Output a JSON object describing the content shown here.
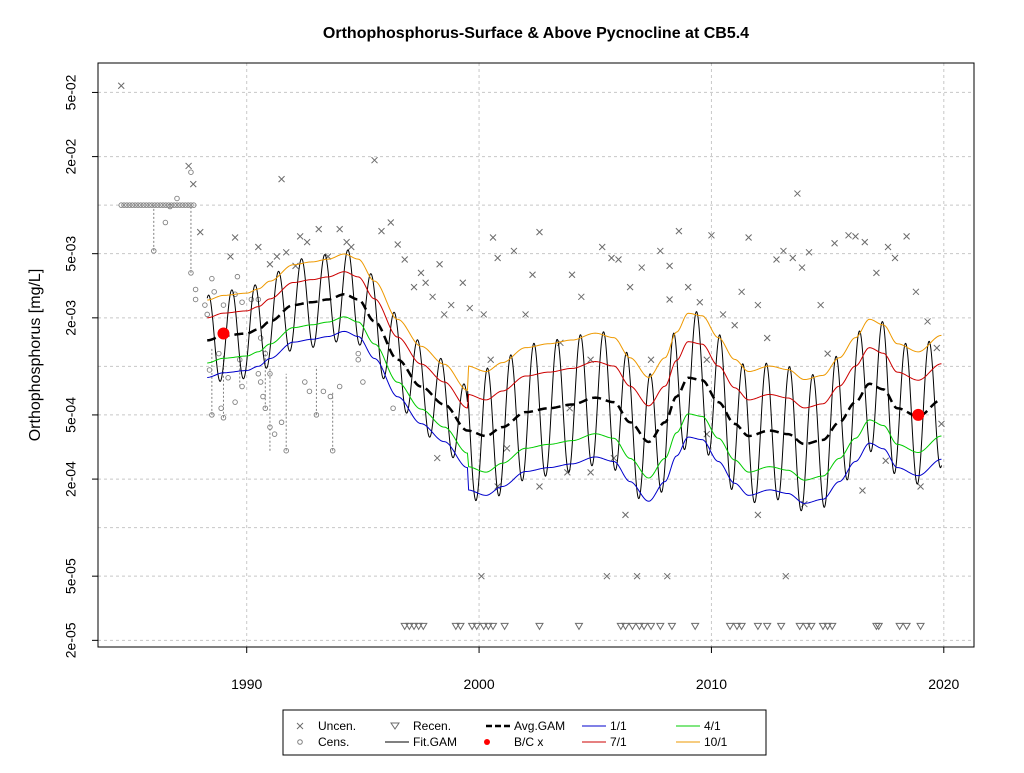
{
  "chart_data": {
    "type": "line",
    "title": "Orthophosphorus-Surface & Above Pycnocline at CB5.4",
    "ylabel": "Orthophosphorus [mg/L]",
    "xlabel": "",
    "y_scale": "log",
    "xlim": [
      1983.6,
      2021.3
    ],
    "ylim_log10": [
      -4.7403,
      -1.1185
    ],
    "x_ticks": [
      1990,
      2000,
      2010,
      2020
    ],
    "x_tick_labels": [
      "1990",
      "2000",
      "2010",
      "2020"
    ],
    "y_tick_labels": [
      {
        "value": 2e-05,
        "label": "2e-05"
      },
      {
        "value": 5e-05,
        "label": "5e-05"
      },
      {
        "value": 0.0002,
        "label": "2e-04"
      },
      {
        "value": 0.0005,
        "label": "5e-04"
      },
      {
        "value": 0.002,
        "label": "2e-03"
      },
      {
        "value": 0.005,
        "label": "5e-03"
      },
      {
        "value": 0.02,
        "label": "2e-02"
      },
      {
        "value": 0.05,
        "label": "5e-02"
      }
    ],
    "grid_y": [
      0.0001,
      0.001,
      0.01
    ],
    "grid": true,
    "colors": {
      "avg_gam": "#000000",
      "fit_gam": "#000000",
      "q_1_1": "#0000cc",
      "q_4_1": "#00cc00",
      "q_7_1": "#cc0000",
      "q_10_1": "#ee9900",
      "bc": "#ff0000",
      "points": "#6b6b6b"
    },
    "fit_gam": {
      "start": 1988.3,
      "end": 2019.9,
      "amplitude_log10": 0.28,
      "amplitude_log10_recent": 0.42
    },
    "avg_gam_knots": [
      [
        1988.3,
        0.00145
      ],
      [
        1989.0,
        0.00155
      ],
      [
        1990.0,
        0.0016
      ],
      [
        1990.5,
        0.0017
      ],
      [
        1991.0,
        0.0019
      ],
      [
        1992.0,
        0.0024
      ],
      [
        1992.8,
        0.0025
      ],
      [
        1993.5,
        0.0026
      ],
      [
        1994.2,
        0.0028
      ],
      [
        1994.8,
        0.0026
      ],
      [
        1995.5,
        0.0019
      ],
      [
        1996.5,
        0.0011
      ],
      [
        1997.5,
        0.00075
      ],
      [
        1998.5,
        0.00058
      ],
      [
        1999.5,
        0.0004
      ],
      [
        2000.3,
        0.00037
      ],
      [
        2001.0,
        0.00042
      ],
      [
        2002.0,
        0.00052
      ],
      [
        2003.0,
        0.00055
      ],
      [
        2004.0,
        0.00058
      ],
      [
        2005.0,
        0.00064
      ],
      [
        2005.8,
        0.0006
      ],
      [
        2006.5,
        0.00045
      ],
      [
        2007.3,
        0.00034
      ],
      [
        2008.0,
        0.00045
      ],
      [
        2008.5,
        0.00065
      ],
      [
        2009.0,
        0.00085
      ],
      [
        2009.6,
        0.00082
      ],
      [
        2010.3,
        0.0006
      ],
      [
        2011.0,
        0.00044
      ],
      [
        2011.6,
        0.00037
      ],
      [
        2012.5,
        0.0004
      ],
      [
        2013.3,
        0.00038
      ],
      [
        2014.0,
        0.00033
      ],
      [
        2014.8,
        0.00035
      ],
      [
        2015.5,
        0.00045
      ],
      [
        2016.2,
        0.0006
      ],
      [
        2016.8,
        0.00078
      ],
      [
        2017.4,
        0.00072
      ],
      [
        2018.0,
        0.00055
      ],
      [
        2018.9,
        0.00049
      ],
      [
        2019.9,
        0.00062
      ]
    ],
    "quantile_offsets_log10": {
      "q_1_1": -0.23,
      "q_4_1": -0.14,
      "q_7_1": 0.14,
      "q_10_1": 0.25,
      "recent_scale": 1.6,
      "recent_from": 1999.5
    },
    "bc_points": [
      {
        "x": 1989.0,
        "y": 0.0016
      },
      {
        "x": 2018.9,
        "y": 0.0005
      }
    ],
    "uncensored": [
      [
        1984.6,
        0.055
      ],
      [
        1987.5,
        0.0175
      ],
      [
        1991.5,
        0.0145
      ],
      [
        1995.5,
        0.019
      ],
      [
        1987.7,
        0.0135
      ],
      [
        1988.0,
        0.0068
      ],
      [
        1989.5,
        0.0063
      ],
      [
        1989.3,
        0.0048
      ],
      [
        1990.5,
        0.0055
      ],
      [
        1991.3,
        0.0048
      ],
      [
        1991.0,
        0.0043
      ],
      [
        1991.7,
        0.0051
      ],
      [
        1992.1,
        0.0042
      ],
      [
        1992.3,
        0.0064
      ],
      [
        1992.6,
        0.0059
      ],
      [
        1993.1,
        0.0071
      ],
      [
        1993.5,
        0.0048
      ],
      [
        1994.0,
        0.0071
      ],
      [
        1994.3,
        0.0059
      ],
      [
        1994.5,
        0.0055
      ],
      [
        1995.8,
        0.0069
      ],
      [
        1996.2,
        0.0078
      ],
      [
        1996.5,
        0.0057
      ],
      [
        1996.8,
        0.0046
      ],
      [
        1997.2,
        0.0031
      ],
      [
        1997.5,
        0.0038
      ],
      [
        1997.7,
        0.0033
      ],
      [
        1998.0,
        0.0027
      ],
      [
        1998.3,
        0.0043
      ],
      [
        1998.5,
        0.0021
      ],
      [
        1998.8,
        0.0024
      ],
      [
        1999.3,
        0.0033
      ],
      [
        1999.6,
        0.0023
      ],
      [
        2000.2,
        0.0021
      ],
      [
        2000.5,
        0.0011
      ],
      [
        2000.8,
        0.0047
      ],
      [
        2000.6,
        0.0063
      ],
      [
        2001.5,
        0.0052
      ],
      [
        2002.3,
        0.0037
      ],
      [
        2002.6,
        0.0068
      ],
      [
        2002.0,
        0.0021
      ],
      [
        2003.5,
        0.0014
      ],
      [
        2004.0,
        0.0037
      ],
      [
        2004.4,
        0.0027
      ],
      [
        2004.8,
        0.0011
      ],
      [
        2005.3,
        0.0055
      ],
      [
        2005.7,
        0.0047
      ],
      [
        2006.0,
        0.0046
      ],
      [
        2006.5,
        0.0031
      ],
      [
        2007.0,
        0.0041
      ],
      [
        2007.4,
        0.0011
      ],
      [
        2007.8,
        0.0052
      ],
      [
        2008.2,
        0.0026
      ],
      [
        2008.6,
        0.0069
      ],
      [
        2008.2,
        0.0042
      ],
      [
        2009.0,
        0.0031
      ],
      [
        2009.5,
        0.0025
      ],
      [
        2009.8,
        0.0011
      ],
      [
        2010.0,
        0.0065
      ],
      [
        2010.5,
        0.0021
      ],
      [
        2011.0,
        0.0018
      ],
      [
        2011.3,
        0.0029
      ],
      [
        2011.6,
        0.0063
      ],
      [
        2012.0,
        0.0024
      ],
      [
        2012.4,
        0.0015
      ],
      [
        2012.8,
        0.0046
      ],
      [
        2013.1,
        0.0052
      ],
      [
        2013.5,
        0.0047
      ],
      [
        2013.9,
        0.0041
      ],
      [
        2014.2,
        0.0051
      ],
      [
        2014.7,
        0.0024
      ],
      [
        2015.0,
        0.0012
      ],
      [
        2015.3,
        0.0058
      ],
      [
        2015.9,
        0.0065
      ],
      [
        2016.2,
        0.0064
      ],
      [
        2016.6,
        0.0059
      ],
      [
        2017.1,
        0.0038
      ],
      [
        2017.6,
        0.0055
      ],
      [
        2017.9,
        0.0047
      ],
      [
        2018.4,
        0.0064
      ],
      [
        2018.8,
        0.0029
      ],
      [
        2019.3,
        0.0019
      ],
      [
        2019.7,
        0.0013
      ],
      [
        2019.9,
        0.00044
      ],
      [
        2019.0,
        0.00018
      ],
      [
        2013.7,
        0.0118
      ],
      [
        1998.2,
        0.00027
      ],
      [
        2000.8,
        0.00018
      ],
      [
        2001.2,
        0.00031
      ],
      [
        2002.6,
        0.00018
      ],
      [
        2003.8,
        0.00022
      ],
      [
        2004.8,
        0.00022
      ],
      [
        2006.3,
        0.00012
      ],
      [
        2003.9,
        0.00055
      ],
      [
        2005.8,
        0.00027
      ],
      [
        2000.1,
        5e-05
      ],
      [
        2005.5,
        5e-05
      ],
      [
        2006.8,
        5e-05
      ],
      [
        2008.1,
        5e-05
      ],
      [
        2013.2,
        5e-05
      ],
      [
        2012.0,
        0.00012
      ],
      [
        2014.0,
        0.00014
      ],
      [
        2016.5,
        0.00017
      ],
      [
        2009.8,
        0.00038
      ],
      [
        2017.5,
        0.00026
      ]
    ],
    "censored_cluster": {
      "x_start": 1984.6,
      "x_end": 1987.8,
      "y": 0.01,
      "extra": [
        [
          1986.0,
          0.0052
        ],
        [
          1986.5,
          0.0078
        ],
        [
          1986.7,
          0.0098
        ],
        [
          1987.0,
          0.011
        ],
        [
          1987.6,
          0.016
        ],
        [
          1987.6,
          0.0038
        ],
        [
          1987.8,
          0.003
        ],
        [
          1987.8,
          0.0026
        ],
        [
          1988.2,
          0.0024
        ],
        [
          1988.3,
          0.0021
        ],
        [
          1988.5,
          0.0035
        ],
        [
          1988.6,
          0.0029
        ],
        [
          1989.0,
          0.0024
        ],
        [
          1989.5,
          0.0028
        ],
        [
          1989.8,
          0.0025
        ],
        [
          1989.6,
          0.0036
        ],
        [
          1990.2,
          0.0026
        ],
        [
          1990.5,
          0.0026
        ],
        [
          1990.6,
          0.0015
        ],
        [
          1990.8,
          0.0012
        ],
        [
          1988.8,
          0.0012
        ],
        [
          1989.2,
          0.00085
        ],
        [
          1989.8,
          0.00075
        ],
        [
          1990.5,
          0.0009
        ],
        [
          1991.0,
          0.0009
        ],
        [
          1988.4,
          0.00095
        ],
        [
          1988.5,
          0.0005
        ],
        [
          1988.9,
          0.00055
        ],
        [
          1989.0,
          0.00048
        ],
        [
          1989.5,
          0.0006
        ],
        [
          1989.7,
          0.0011
        ],
        [
          1990.6,
          0.0008
        ],
        [
          1990.8,
          0.00055
        ],
        [
          1991.5,
          0.00045
        ],
        [
          1991.7,
          0.0003
        ],
        [
          1992.5,
          0.0008
        ],
        [
          1992.7,
          0.0007
        ],
        [
          1993.0,
          0.0005
        ],
        [
          1993.3,
          0.0007
        ],
        [
          1993.6,
          0.00065
        ],
        [
          1994.0,
          0.00075
        ],
        [
          1994.8,
          0.0011
        ],
        [
          1995.0,
          0.0008
        ],
        [
          1996.3,
          0.00055
        ],
        [
          1993.7,
          0.0003
        ],
        [
          1991.0,
          0.00042
        ],
        [
          1991.2,
          0.00038
        ],
        [
          1990.7,
          0.00065
        ],
        [
          1994.8,
          0.0012
        ]
      ],
      "vertical_links": [
        [
          1986.0,
          0.0052,
          0.01
        ],
        [
          1987.6,
          0.0038,
          0.01
        ],
        [
          1988.5,
          0.0005,
          0.0013
        ],
        [
          1989.0,
          0.00048,
          0.0012
        ],
        [
          1989.7,
          0.00075,
          0.0011
        ],
        [
          1990.8,
          0.00055,
          0.0013
        ],
        [
          1991.0,
          0.0003,
          0.001
        ],
        [
          1991.7,
          0.0003,
          0.0009
        ],
        [
          1993.0,
          0.0005,
          0.001
        ],
        [
          1993.7,
          0.0003,
          0.0007
        ]
      ]
    },
    "recensored": {
      "y": 2e-05,
      "x": [
        1996.8,
        1997.0,
        1997.2,
        1997.4,
        1997.6,
        1999.0,
        1999.2,
        1999.7,
        1999.9,
        2000.2,
        2000.4,
        2000.6,
        2001.1,
        2002.6,
        2004.3,
        2006.1,
        2006.3,
        2006.6,
        2006.9,
        2007.1,
        2007.4,
        2007.8,
        2008.3,
        2009.3,
        2010.8,
        2011.1,
        2011.3,
        2012.0,
        2012.4,
        2013.0,
        2013.8,
        2014.1,
        2014.3,
        2014.8,
        2015.0,
        2015.2,
        2017.1,
        2017.2,
        2018.1,
        2018.4,
        2019.0
      ]
    },
    "legend": {
      "items": [
        {
          "label": "Uncen.",
          "symbol": "x"
        },
        {
          "label": "Cens.",
          "symbol": "circle"
        },
        {
          "label": "Recen.",
          "symbol": "triangle"
        },
        {
          "label": "Fit.GAM",
          "symbol": "line-thin"
        },
        {
          "label": "Avg.GAM",
          "symbol": "line-dashed"
        },
        {
          "label": "B/C x",
          "symbol": "dot-red"
        },
        {
          "label": "1/1",
          "symbol": "line-blue"
        },
        {
          "label": "4/1",
          "symbol": "line-green"
        },
        {
          "label": "7/1",
          "symbol": "line-red"
        },
        {
          "label": "10/1",
          "symbol": "line-orange"
        }
      ]
    }
  }
}
